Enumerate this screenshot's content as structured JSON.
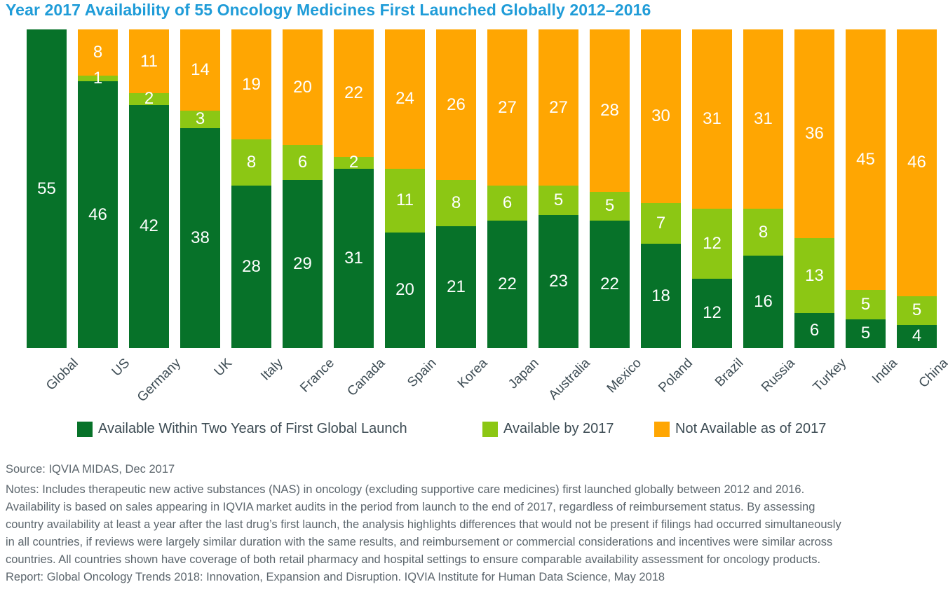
{
  "title": "Year 2017 Availability of 55 Oncology Medicines First Launched Globally 2012–2016",
  "colors": {
    "title": "#1f9cd8",
    "dark_green": "#077229",
    "light_green": "#8cc714",
    "orange": "#ffa602",
    "axis_text": "#3d4c54",
    "footer_text": "#5c666d",
    "value_label": "#ffffff"
  },
  "chart_data": {
    "type": "bar",
    "stacked": true,
    "title": "Year 2017 Availability of 55 Oncology Medicines First Launched Globally 2012–2016",
    "xlabel": "",
    "ylabel": "",
    "ylim": [
      0,
      55
    ],
    "grid": false,
    "legend_position": "bottom",
    "value_labels": true,
    "categories": [
      "Global",
      "US",
      "Germany",
      "UK",
      "Italy",
      "France",
      "Canada",
      "Spain",
      "Korea",
      "Japan",
      "Australia",
      "Mexico",
      "Poland",
      "Brazil",
      "Russia",
      "Turkey",
      "India",
      "China"
    ],
    "series": [
      {
        "name": "Available Within Two Years of First Global Launch",
        "color": "#077229",
        "values": [
          55,
          46,
          42,
          38,
          28,
          29,
          31,
          20,
          21,
          22,
          23,
          22,
          18,
          12,
          16,
          6,
          5,
          4
        ]
      },
      {
        "name": "Available by 2017",
        "color": "#8cc714",
        "values": [
          0,
          1,
          2,
          3,
          8,
          6,
          2,
          11,
          8,
          6,
          5,
          5,
          7,
          12,
          8,
          13,
          5,
          5
        ]
      },
      {
        "name": "Not Available as of 2017",
        "color": "#ffa602",
        "values": [
          0,
          8,
          11,
          14,
          19,
          20,
          22,
          24,
          26,
          27,
          27,
          28,
          30,
          31,
          31,
          36,
          45,
          46
        ]
      }
    ]
  },
  "footer": {
    "source": "Source: IQVIA MIDAS, Dec 2017",
    "notes_lines": [
      "Notes: Includes therapeutic new active substances (NAS) in oncology (excluding supportive care medicines) first launched globally between 2012 and 2016.",
      "Availability is based on sales appearing in IQVIA market audits in the period from launch to the end of 2017, regardless of reimbursement status. By assessing",
      "country availability at least a year after the last drug’s first launch, the analysis highlights differences that would not be present if filings had occurred simultaneously",
      "in all countries, if reviews were largely similar duration with the same results, and reimbursement or commercial considerations and incentives were similar across",
      "countries. All countries shown have coverage of both retail pharmacy and hospital settings to ensure comparable availability assessment for oncology products."
    ],
    "report": "Report: Global Oncology Trends 2018: Innovation, Expansion and Disruption. IQVIA Institute for Human Data Science, May 2018"
  }
}
